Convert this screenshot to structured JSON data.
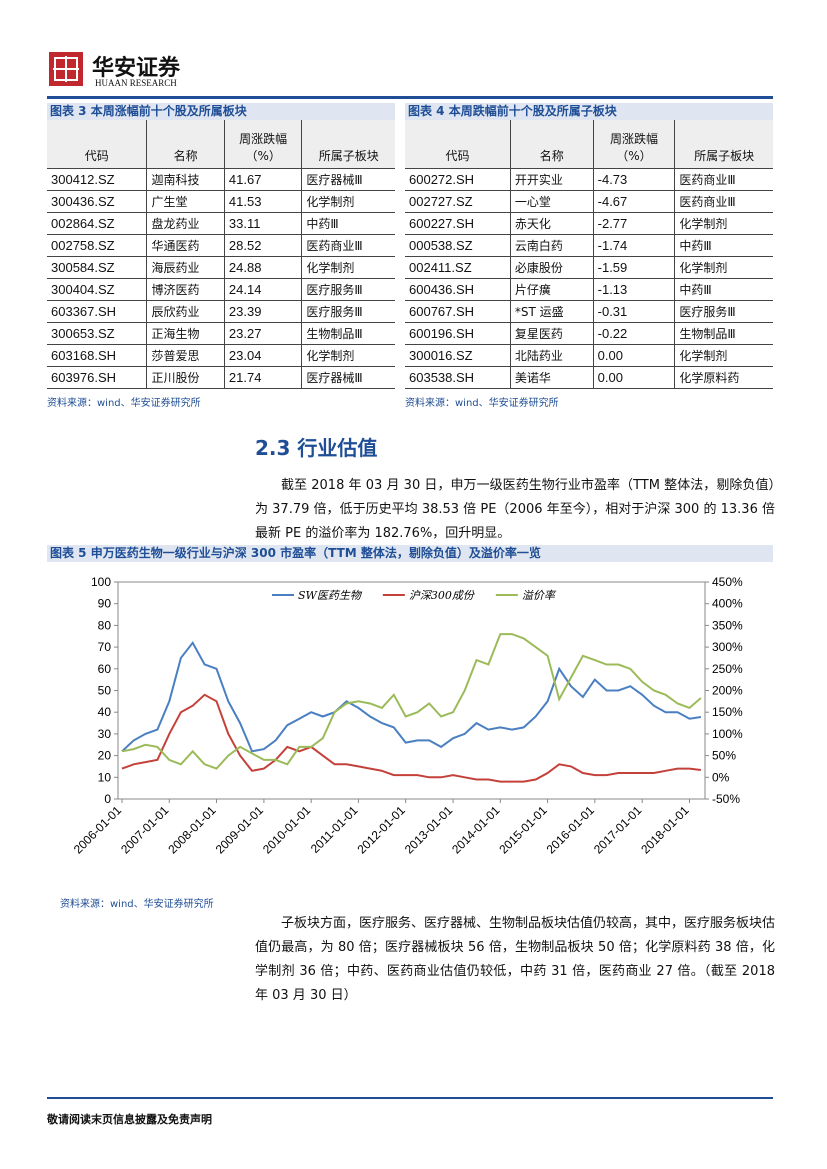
{
  "header": {
    "logo": "华安证券",
    "logo_sub": "HUAAN RESEARCH"
  },
  "tables": [
    {
      "title": "图表 3 本周涨幅前十个股及所属板块",
      "columns": [
        "代码",
        "名称",
        [
          "周涨跌幅",
          "（%）"
        ],
        "所属子板块"
      ],
      "rows": [
        [
          "300412.SZ",
          "迦南科技",
          "41.67",
          "医疗器械Ⅲ"
        ],
        [
          "300436.SZ",
          "广生堂",
          "41.53",
          "化学制剂"
        ],
        [
          "002864.SZ",
          "盘龙药业",
          "33.11",
          "中药Ⅲ"
        ],
        [
          "002758.SZ",
          "华通医药",
          "28.52",
          "医药商业Ⅲ"
        ],
        [
          "300584.SZ",
          "海辰药业",
          "24.88",
          "化学制剂"
        ],
        [
          "300404.SZ",
          "博济医药",
          "24.14",
          "医疗服务Ⅲ"
        ],
        [
          "603367.SH",
          "辰欣药业",
          "23.39",
          "医疗服务Ⅲ"
        ],
        [
          "300653.SZ",
          "正海生物",
          "23.27",
          "生物制品Ⅲ"
        ],
        [
          "603168.SH",
          "莎普爱思",
          "23.04",
          "化学制剂"
        ],
        [
          "603976.SH",
          "正川股份",
          "21.74",
          "医疗器械Ⅲ"
        ]
      ],
      "source": "资料来源：wind、华安证券研究所"
    },
    {
      "title": "图表 4 本周跌幅前十个股及所属子板块",
      "columns": [
        "代码",
        "名称",
        [
          "周涨跌幅",
          "（%）"
        ],
        "所属子板块"
      ],
      "rows": [
        [
          "600272.SH",
          "开开实业",
          "-4.73",
          "医药商业Ⅲ"
        ],
        [
          "002727.SZ",
          "一心堂",
          "-4.67",
          "医药商业Ⅲ"
        ],
        [
          "600227.SH",
          "赤天化",
          "-2.77",
          "化学制剂"
        ],
        [
          "000538.SZ",
          "云南白药",
          "-1.74",
          "中药Ⅲ"
        ],
        [
          "002411.SZ",
          "必康股份",
          "-1.59",
          "化学制剂"
        ],
        [
          "600436.SH",
          "片仔癀",
          "-1.13",
          "中药Ⅲ"
        ],
        [
          "600767.SH",
          "*ST 运盛",
          "-0.31",
          "医疗服务Ⅲ"
        ],
        [
          "600196.SH",
          "复星医药",
          "-0.22",
          "生物制品Ⅲ"
        ],
        [
          "300016.SZ",
          "北陆药业",
          "0.00",
          "化学制剂"
        ],
        [
          "603538.SH",
          "美诺华",
          "0.00",
          "化学原料药"
        ]
      ],
      "source": "资料来源：wind、华安证券研究所"
    }
  ],
  "section": {
    "heading": "2.3 行业估值",
    "paragraph": "截至 2018 年 03 月 30 日，申万一级医药生物行业市盈率（TTM 整体法，剔除负值）为 37.79 倍，低于历史平均 38.53 倍 PE（2006 年至今），相对于沪深 300 的 13.36 倍最新 PE 的溢价率为 182.76%，回升明显。"
  },
  "chart_data": {
    "type": "line",
    "title": "图表 5 申万医药生物一级行业与沪深 300 市盈率（TTM 整体法，剔除负值）及溢价率一览",
    "x": [
      "2006-01-01",
      "2006-04-01",
      "2006-07-01",
      "2006-10-01",
      "2007-01-01",
      "2007-04-01",
      "2007-07-01",
      "2007-10-01",
      "2008-01-01",
      "2008-04-01",
      "2008-07-01",
      "2008-10-01",
      "2009-01-01",
      "2009-04-01",
      "2009-07-01",
      "2009-10-01",
      "2010-01-01",
      "2010-04-01",
      "2010-07-01",
      "2010-10-01",
      "2011-01-01",
      "2011-04-01",
      "2011-07-01",
      "2011-10-01",
      "2012-01-01",
      "2012-04-01",
      "2012-07-01",
      "2012-10-01",
      "2013-01-01",
      "2013-04-01",
      "2013-07-01",
      "2013-10-01",
      "2014-01-01",
      "2014-04-01",
      "2014-07-01",
      "2014-10-01",
      "2015-01-01",
      "2015-04-01",
      "2015-07-01",
      "2015-10-01",
      "2016-01-01",
      "2016-04-01",
      "2016-07-01",
      "2016-10-01",
      "2017-01-01",
      "2017-04-01",
      "2017-07-01",
      "2017-10-01",
      "2018-01-01",
      "2018-03-30"
    ],
    "series": [
      {
        "name": "SW医药生物",
        "color": "#4a7fc1",
        "values": [
          22,
          27,
          30,
          32,
          45,
          65,
          72,
          62,
          60,
          45,
          35,
          22,
          23,
          27,
          34,
          37,
          40,
          38,
          40,
          45,
          42,
          38,
          35,
          33,
          26,
          27,
          27,
          24,
          28,
          30,
          35,
          32,
          33,
          32,
          33,
          38,
          45,
          60,
          52,
          47,
          55,
          50,
          50,
          52,
          48,
          43,
          40,
          40,
          37,
          37.79
        ]
      },
      {
        "name": "沪深300成份",
        "color": "#c4413a",
        "values": [
          14,
          16,
          17,
          18,
          30,
          40,
          43,
          48,
          45,
          30,
          20,
          13,
          14,
          18,
          24,
          22,
          24,
          20,
          16,
          16,
          15,
          14,
          13,
          11,
          11,
          11,
          10,
          10,
          11,
          10,
          9,
          9,
          8,
          8,
          8,
          9,
          12,
          16,
          15,
          12,
          11,
          11,
          12,
          12,
          12,
          12,
          13,
          14,
          14,
          13.36
        ]
      },
      {
        "name": "溢价率",
        "color": "#9bbb59",
        "axis": "y2",
        "values": [
          60,
          65,
          75,
          70,
          40,
          30,
          60,
          30,
          20,
          50,
          70,
          55,
          40,
          40,
          30,
          70,
          70,
          90,
          150,
          170,
          175,
          170,
          160,
          190,
          140,
          150,
          170,
          140,
          150,
          200,
          270,
          260,
          330,
          330,
          320,
          300,
          280,
          180,
          230,
          280,
          270,
          260,
          260,
          250,
          220,
          200,
          190,
          170,
          160,
          182.76
        ]
      }
    ],
    "xlim": [
      "2005-12-01",
      "2018-05-01"
    ],
    "xticks": [
      "2006-01-01",
      "2007-01-01",
      "2008-01-01",
      "2009-01-01",
      "2010-01-01",
      "2011-01-01",
      "2012-01-01",
      "2013-01-01",
      "2014-01-01",
      "2015-01-01",
      "2016-01-01",
      "2017-01-01",
      "2018-01-01"
    ],
    "ylim": [
      0,
      100
    ],
    "yticks": [
      0,
      10,
      20,
      30,
      40,
      50,
      60,
      70,
      80,
      90,
      100
    ],
    "y2lim": [
      -50,
      450
    ],
    "y2ticks": [
      {
        "value": -50,
        "label": "-50%"
      },
      {
        "value": 0,
        "label": "0%"
      },
      {
        "value": 50,
        "label": "50%"
      },
      {
        "value": 100,
        "label": "100%"
      },
      {
        "value": 150,
        "label": "150%"
      },
      {
        "value": 200,
        "label": "200%"
      },
      {
        "value": 250,
        "label": "250%"
      },
      {
        "value": 300,
        "label": "300%"
      },
      {
        "value": 350,
        "label": "350%"
      },
      {
        "value": 400,
        "label": "400%"
      },
      {
        "value": 450,
        "label": "450%"
      }
    ],
    "legend": "top",
    "source": "资料来源：wind、华安证券研究所"
  },
  "closing": "子板块方面，医疗服务、医疗器械、生物制品板块估值仍较高，其中，医疗服务板块估值仍最高，为 80 倍；医疗器械板块 56 倍，生物制品板块 50 倍；化学原料药 38 倍，化学制剂 36 倍；中药、医药商业估值仍较低，中药 31 倍，医药商业 27 倍。（截至 2018 年 03 月 30 日）",
  "footer": "敬请阅读末页信息披露及免责声明"
}
